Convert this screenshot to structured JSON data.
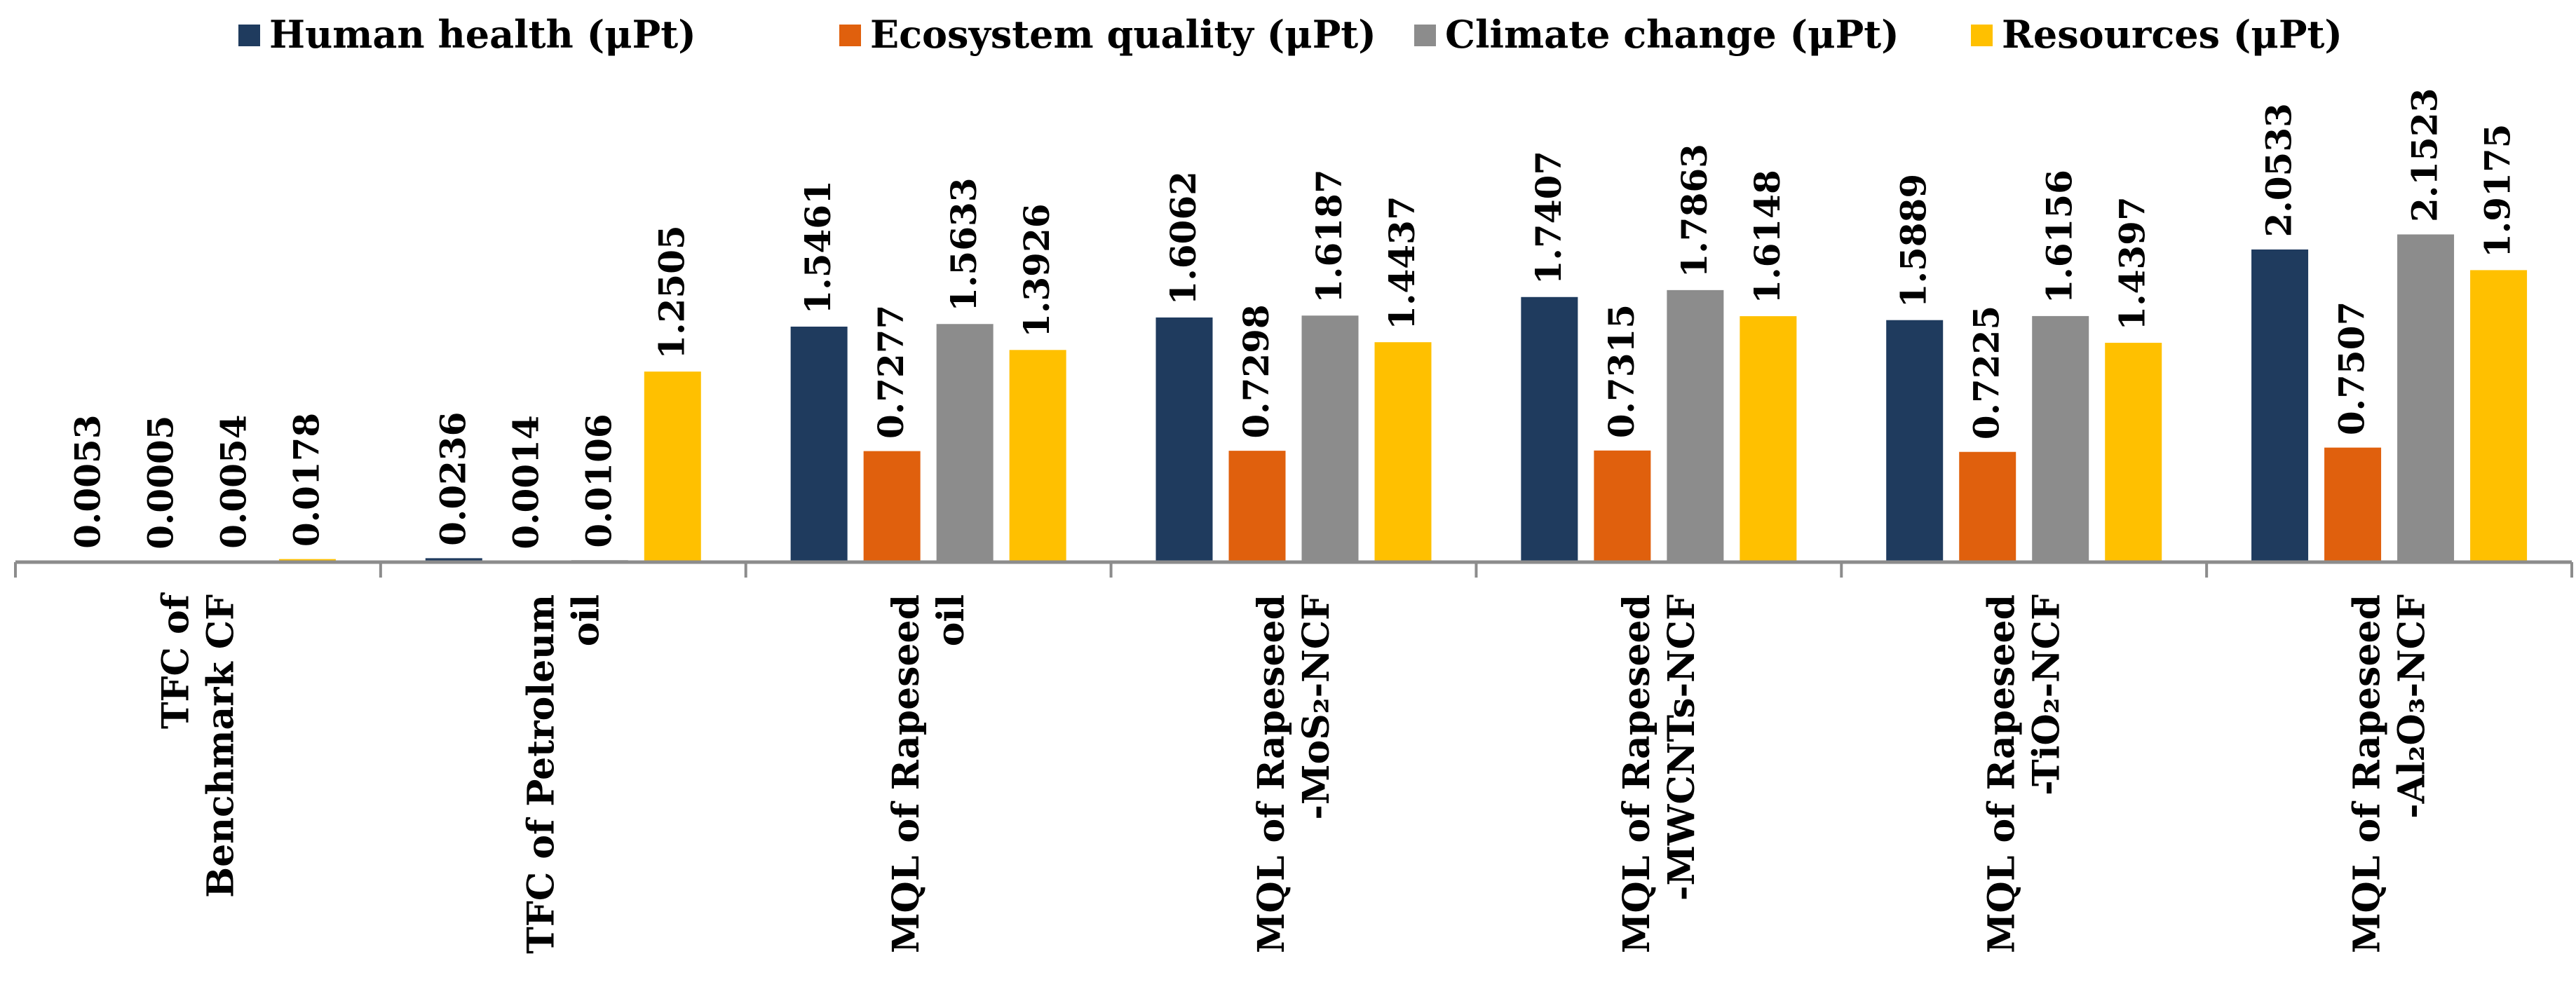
{
  "chart_data": {
    "type": "bar",
    "title": "",
    "xlabel": "",
    "ylabel": "",
    "ylim": [
      0,
      2.6
    ],
    "grid": false,
    "legend_position": "top",
    "categories": [
      [
        "TFC of",
        "Benchmark CF"
      ],
      [
        "TFC of Petroleum",
        "oil"
      ],
      [
        "MQL of Rapeseed",
        "oil"
      ],
      [
        "MQL of Rapeseed",
        "-MoS₂-NCF"
      ],
      [
        "MQL of Rapeseed",
        "-MWCNTs-NCF"
      ],
      [
        "MQL of Rapeseed",
        "-TiO₂-NCF"
      ],
      [
        "MQL of Rapeseed",
        "-Al₂O₃-NCF"
      ]
    ],
    "series": [
      {
        "name": "Human health (μPt)",
        "color": "#1f3b5e",
        "values": [
          0.0053,
          0.0236,
          1.5461,
          1.6062,
          1.7407,
          1.5889,
          2.0533
        ],
        "labels": [
          "0.0053",
          "0.0236",
          "1.5461",
          "1.6062",
          "1.7407",
          "1.5889",
          "2.0533"
        ]
      },
      {
        "name": "Ecosystem quality (μPt)",
        "color": "#e0600d",
        "values": [
          0.0005,
          0.0014,
          0.7277,
          0.7298,
          0.7315,
          0.7225,
          0.7507
        ],
        "labels": [
          "0.0005",
          "0.0014",
          "0.7277",
          "0.7298",
          "0.7315",
          "0.7225",
          "0.7507"
        ]
      },
      {
        "name": "Climate change (μPt)",
        "color": "#8c8c8c",
        "values": [
          0.0054,
          0.0106,
          1.5633,
          1.6187,
          1.7863,
          1.6156,
          2.1523
        ],
        "labels": [
          "0.0054",
          "0.0106",
          "1.5633",
          "1.6187",
          "1.7863",
          "1.6156",
          "2.1523"
        ]
      },
      {
        "name": "Resources (μPt)",
        "color": "#ffc000",
        "values": [
          0.0178,
          1.2505,
          1.3926,
          1.4437,
          1.6148,
          1.4397,
          1.9175
        ],
        "labels": [
          "0.0178",
          "1.2505",
          "1.3926",
          "1.4437",
          "1.6148",
          "1.4397",
          "1.9175"
        ]
      }
    ]
  }
}
